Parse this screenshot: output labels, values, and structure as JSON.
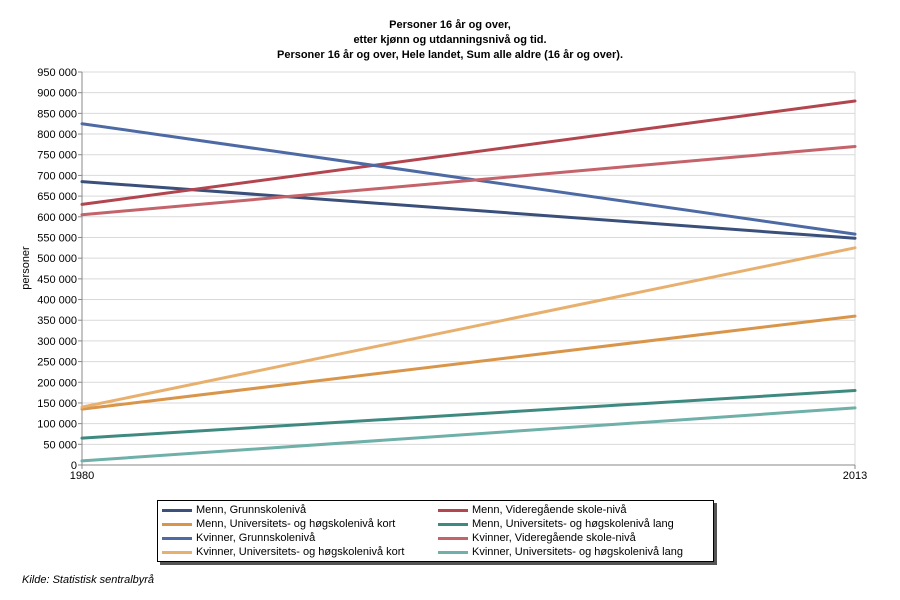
{
  "title": {
    "line1": "Personer 16 år og over,",
    "line2": "etter kjønn og utdanningsnivå og tid.",
    "line3": "Personer 16 år og over, Hele landet, Sum alle aldre (16 år og over)."
  },
  "source": "Kilde: Statistisk sentralbyrå",
  "chart_data": {
    "type": "line",
    "ylabel": "personer",
    "x": [
      1980,
      2013
    ],
    "x_tick_labels": [
      "1980",
      "2013"
    ],
    "ylim": [
      0,
      950000
    ],
    "y_ticks": [
      0,
      50000,
      100000,
      150000,
      200000,
      250000,
      300000,
      350000,
      400000,
      450000,
      500000,
      550000,
      600000,
      650000,
      700000,
      750000,
      800000,
      850000,
      900000,
      950000
    ],
    "y_tick_labels": [
      "0",
      "50 000",
      "100 000",
      "150 000",
      "200 000",
      "250 000",
      "300 000",
      "350 000",
      "400 000",
      "450 000",
      "500 000",
      "550 000",
      "600 000",
      "650 000",
      "700 000",
      "750 000",
      "800 000",
      "850 000",
      "900 000",
      "950 000"
    ],
    "grid": true,
    "legend_position": "bottom",
    "series": [
      {
        "name": "Menn, Grunnskolenivå",
        "values": [
          685000,
          548000
        ],
        "color": "#3a4f7a"
      },
      {
        "name": "Menn, Videregående skole-nivå",
        "values": [
          630000,
          880000
        ],
        "color": "#b2454e"
      },
      {
        "name": "Menn, Universitets- og høgskolenivå kort",
        "values": [
          135000,
          360000
        ],
        "color": "#d9954a"
      },
      {
        "name": "Menn, Universitets- og høgskolenivå lang",
        "values": [
          65000,
          180000
        ],
        "color": "#3f8a80"
      },
      {
        "name": "Kvinner, Grunnskolenivå",
        "values": [
          825000,
          558000
        ],
        "color": "#4d6aa4"
      },
      {
        "name": "Kvinner, Videregående skole-nivå",
        "values": [
          605000,
          770000
        ],
        "color": "#c4636a"
      },
      {
        "name": "Kvinner, Universitets- og høgskolenivå kort",
        "values": [
          140000,
          525000
        ],
        "color": "#e8b06e"
      },
      {
        "name": "Kvinner, Universitets- og høgskolenivå lang",
        "values": [
          10000,
          138000
        ],
        "color": "#6fb0a8"
      }
    ]
  }
}
